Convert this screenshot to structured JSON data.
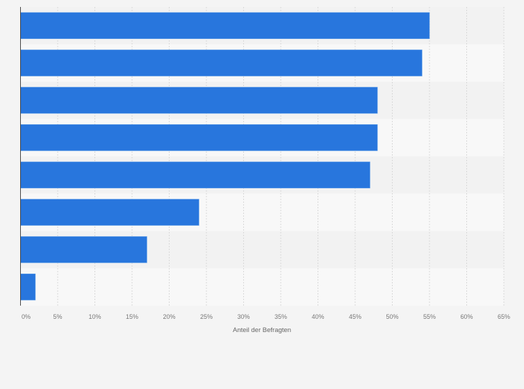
{
  "chart_data": {
    "type": "bar",
    "orientation": "horizontal",
    "categories": [
      "",
      "",
      "",
      "",
      "",
      "",
      "",
      ""
    ],
    "values": [
      55,
      54,
      48,
      48,
      47,
      24,
      17,
      2
    ],
    "xlabel": "Anteil der Befragten",
    "ylabel": "",
    "xlim": [
      0,
      65
    ],
    "x_ticks": [
      "0%",
      "5%",
      "10%",
      "15%",
      "20%",
      "25%",
      "30%",
      "35%",
      "40%",
      "45%",
      "50%",
      "55%",
      "60%",
      "65%"
    ],
    "grid": true,
    "colors": {
      "bar": "#2876dd",
      "band_a": "#f2f2f2",
      "band_b": "#f8f8f8",
      "background": "#f4f4f4"
    }
  }
}
